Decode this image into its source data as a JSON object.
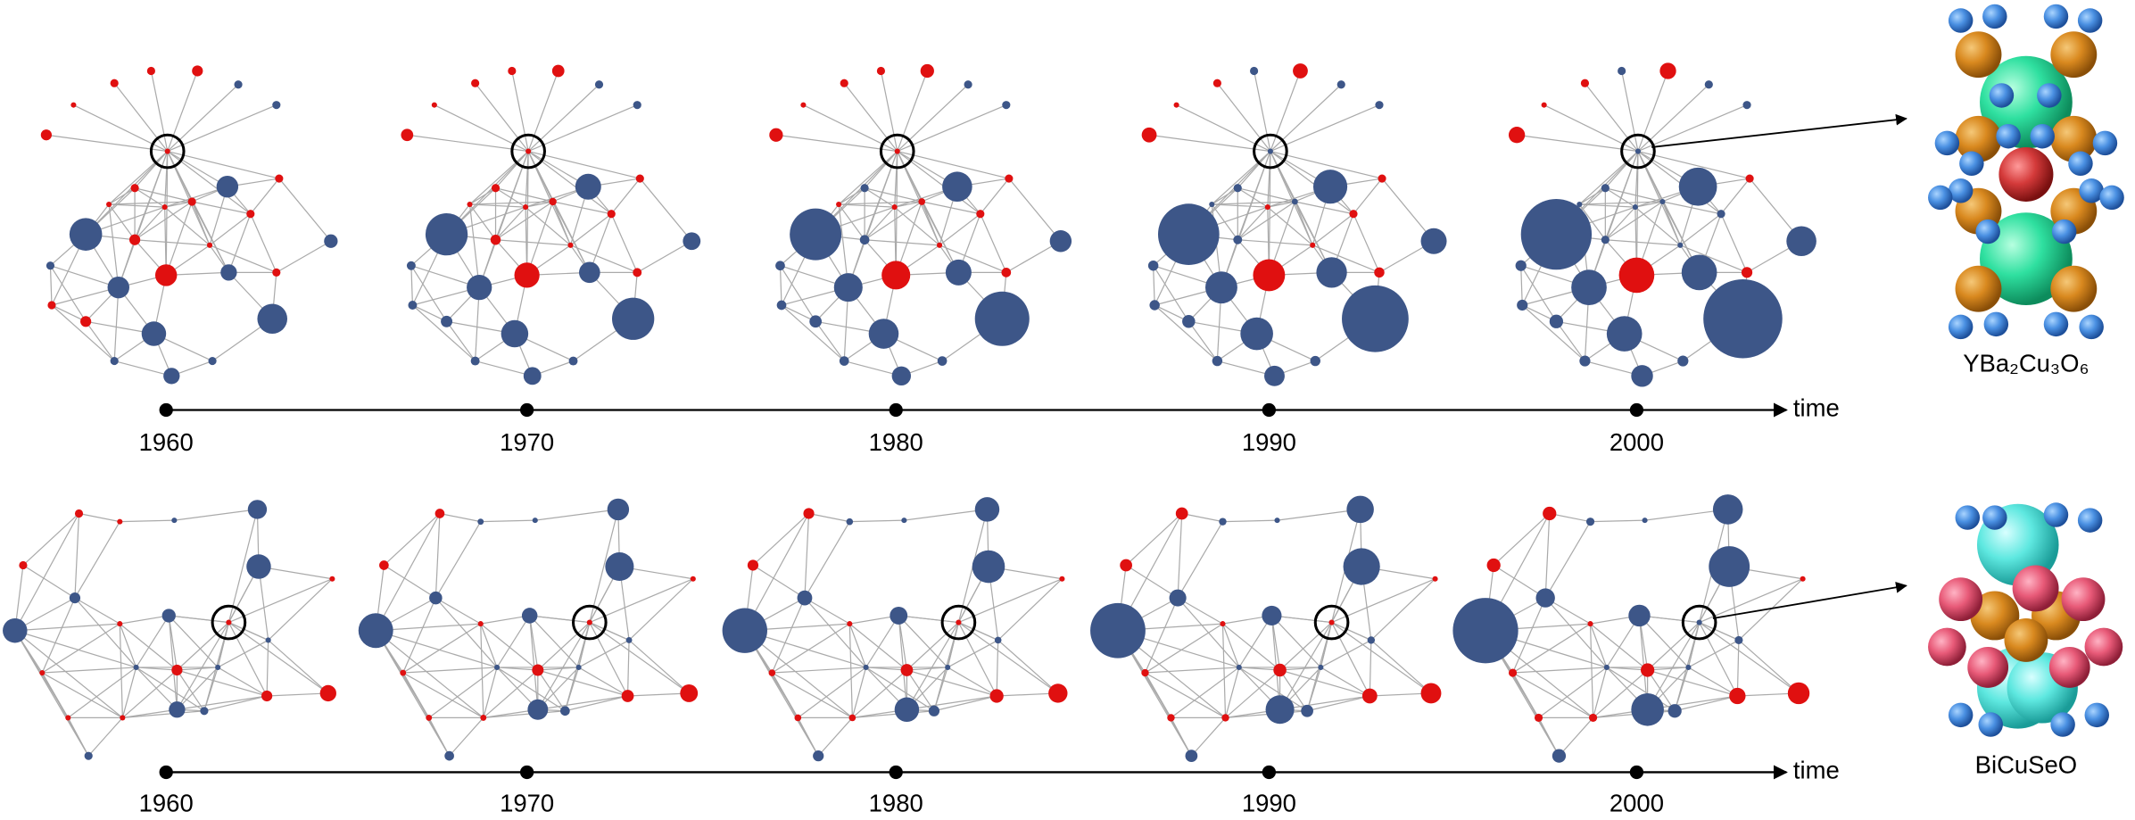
{
  "timelines": [
    {
      "years": [
        "1960",
        "1970",
        "1980",
        "1990",
        "2000"
      ],
      "axis_label": "time",
      "material": "YBa₂Cu₃O₆"
    },
    {
      "years": [
        "1960",
        "1970",
        "1980",
        "1990",
        "2000"
      ],
      "axis_label": "time",
      "material": "BiCuSeO"
    }
  ]
}
